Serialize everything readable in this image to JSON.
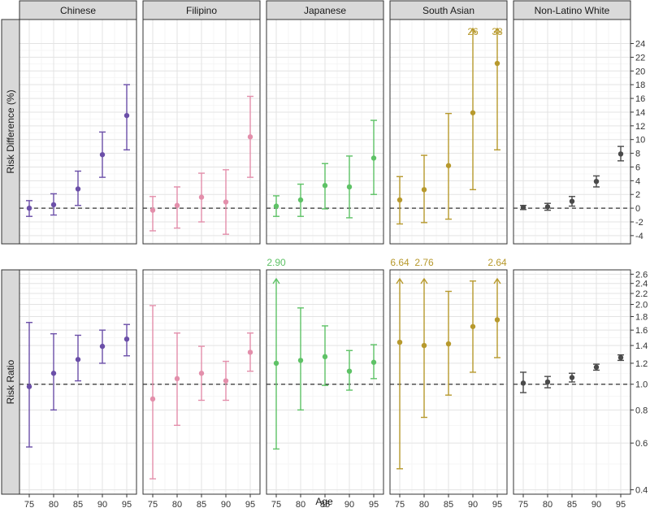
{
  "chart_data": {
    "type": "scatter",
    "xlabel": "Age",
    "x": [
      75,
      80,
      85,
      90,
      95
    ],
    "groups": [
      {
        "name": "Chinese",
        "color": "#6b4fa8"
      },
      {
        "name": "Filipino",
        "color": "#e38fab"
      },
      {
        "name": "Japanese",
        "color": "#5ec266"
      },
      {
        "name": "South Asian",
        "color": "#b7992d"
      },
      {
        "name": "Non-Latino White",
        "color": "#4a4a4a"
      }
    ],
    "rows": [
      {
        "strip_label": "Risk Difference (%)",
        "scale": "linear",
        "ylim": [
          -5.2,
          27.5
        ],
        "ticks": [
          -4,
          -2,
          0,
          2,
          4,
          6,
          8,
          10,
          12,
          14,
          16,
          18,
          20,
          22,
          24
        ],
        "tick_labels": [
          "-4",
          "-2",
          "0",
          "2",
          "4",
          "6",
          "8",
          "10",
          "12",
          "14",
          "16",
          "18",
          "20",
          "22",
          "24"
        ],
        "minor_ticks": [
          -5,
          -3,
          -1,
          1,
          3,
          5,
          7,
          9,
          11,
          13,
          15,
          17,
          19,
          21,
          23
        ],
        "reference_line": 0,
        "points": [
          {
            "group": "Chinese",
            "x": 75,
            "y": 0.0,
            "lo": -1.2,
            "hi": 1.1
          },
          {
            "group": "Chinese",
            "x": 80,
            "y": 0.5,
            "lo": -1.0,
            "hi": 2.1
          },
          {
            "group": "Chinese",
            "x": 85,
            "y": 2.8,
            "lo": 0.4,
            "hi": 5.4
          },
          {
            "group": "Chinese",
            "x": 90,
            "y": 7.8,
            "lo": 4.5,
            "hi": 11.1
          },
          {
            "group": "Chinese",
            "x": 95,
            "y": 13.5,
            "lo": 8.5,
            "hi": 18.0
          },
          {
            "group": "Filipino",
            "x": 75,
            "y": -0.3,
            "lo": -3.3,
            "hi": 1.7
          },
          {
            "group": "Filipino",
            "x": 80,
            "y": 0.4,
            "lo": -2.9,
            "hi": 3.1
          },
          {
            "group": "Filipino",
            "x": 85,
            "y": 1.6,
            "lo": -2.0,
            "hi": 5.1
          },
          {
            "group": "Filipino",
            "x": 90,
            "y": 0.9,
            "lo": -3.8,
            "hi": 5.6
          },
          {
            "group": "Filipino",
            "x": 95,
            "y": 10.4,
            "lo": 4.5,
            "hi": 16.3
          },
          {
            "group": "Japanese",
            "x": 75,
            "y": 0.3,
            "lo": -1.2,
            "hi": 1.8
          },
          {
            "group": "Japanese",
            "x": 80,
            "y": 1.2,
            "lo": -1.2,
            "hi": 3.5
          },
          {
            "group": "Japanese",
            "x": 85,
            "y": 3.3,
            "lo": -0.1,
            "hi": 6.5
          },
          {
            "group": "Japanese",
            "x": 90,
            "y": 3.1,
            "lo": -1.4,
            "hi": 7.6
          },
          {
            "group": "Japanese",
            "x": 95,
            "y": 7.3,
            "lo": 2.0,
            "hi": 12.8
          },
          {
            "group": "South Asian",
            "x": 75,
            "y": 1.2,
            "lo": -2.3,
            "hi": 4.6
          },
          {
            "group": "South Asian",
            "x": 80,
            "y": 2.7,
            "lo": -2.1,
            "hi": 7.7
          },
          {
            "group": "South Asian",
            "x": 85,
            "y": 6.2,
            "lo": -1.6,
            "hi": 13.8
          },
          {
            "group": "South Asian",
            "x": 90,
            "y": 13.9,
            "lo": 2.7,
            "hi": 26,
            "clipped": true,
            "clip_label": "26"
          },
          {
            "group": "South Asian",
            "x": 95,
            "y": 21.1,
            "lo": 8.5,
            "hi": 38,
            "clipped": true,
            "clip_label": "38"
          },
          {
            "group": "Non-Latino White",
            "x": 75,
            "y": 0.1,
            "lo": -0.2,
            "hi": 0.4
          },
          {
            "group": "Non-Latino White",
            "x": 80,
            "y": 0.2,
            "lo": -0.3,
            "hi": 0.7
          },
          {
            "group": "Non-Latino White",
            "x": 85,
            "y": 1.0,
            "lo": 0.3,
            "hi": 1.7
          },
          {
            "group": "Non-Latino White",
            "x": 90,
            "y": 3.9,
            "lo": 3.1,
            "hi": 4.7
          },
          {
            "group": "Non-Latino White",
            "x": 95,
            "y": 7.9,
            "lo": 6.9,
            "hi": 9.0
          }
        ]
      },
      {
        "strip_label": "Risk Ratio",
        "scale": "log",
        "ylim": [
          0.385,
          2.7
        ],
        "ticks": [
          0.4,
          0.6,
          0.8,
          1.0,
          1.2,
          1.4,
          1.6,
          1.8,
          2.0,
          2.2,
          2.4,
          2.6
        ],
        "tick_labels": [
          "0.4",
          "0.6",
          "0.8",
          "1.0",
          "1.2",
          "1.4",
          "1.6",
          "1.8",
          "2.0",
          "2.2",
          "2.4",
          "2.6"
        ],
        "minor_ticks": [
          0.5,
          0.7,
          0.9,
          1.1,
          1.3,
          1.5,
          1.7,
          1.9,
          2.1,
          2.3,
          2.5
        ],
        "reference_line": 1.0,
        "points": [
          {
            "group": "Chinese",
            "x": 75,
            "y": 0.98,
            "lo": 0.58,
            "hi": 1.71
          },
          {
            "group": "Chinese",
            "x": 80,
            "y": 1.1,
            "lo": 0.8,
            "hi": 1.55
          },
          {
            "group": "Chinese",
            "x": 85,
            "y": 1.24,
            "lo": 1.03,
            "hi": 1.53
          },
          {
            "group": "Chinese",
            "x": 90,
            "y": 1.39,
            "lo": 1.2,
            "hi": 1.6
          },
          {
            "group": "Chinese",
            "x": 95,
            "y": 1.48,
            "lo": 1.28,
            "hi": 1.68
          },
          {
            "group": "Filipino",
            "x": 75,
            "y": 0.88,
            "lo": 0.44,
            "hi": 1.98
          },
          {
            "group": "Filipino",
            "x": 80,
            "y": 1.05,
            "lo": 0.7,
            "hi": 1.56
          },
          {
            "group": "Filipino",
            "x": 85,
            "y": 1.1,
            "lo": 0.87,
            "hi": 1.39
          },
          {
            "group": "Filipino",
            "x": 90,
            "y": 1.03,
            "lo": 0.87,
            "hi": 1.22
          },
          {
            "group": "Filipino",
            "x": 95,
            "y": 1.32,
            "lo": 1.12,
            "hi": 1.56
          },
          {
            "group": "Japanese",
            "x": 75,
            "y": 1.2,
            "lo": 0.57,
            "hi": 2.9,
            "clipped": true,
            "clip_label": "2.90"
          },
          {
            "group": "Japanese",
            "x": 80,
            "y": 1.23,
            "lo": 0.8,
            "hi": 1.94
          },
          {
            "group": "Japanese",
            "x": 85,
            "y": 1.27,
            "lo": 0.99,
            "hi": 1.66
          },
          {
            "group": "Japanese",
            "x": 90,
            "y": 1.12,
            "lo": 0.95,
            "hi": 1.34
          },
          {
            "group": "Japanese",
            "x": 95,
            "y": 1.21,
            "lo": 1.05,
            "hi": 1.41
          },
          {
            "group": "South Asian",
            "x": 75,
            "y": 1.44,
            "lo": 0.48,
            "hi": 6.64,
            "clipped": true,
            "clip_label": "6.64"
          },
          {
            "group": "South Asian",
            "x": 80,
            "y": 1.4,
            "lo": 0.75,
            "hi": 2.76,
            "clipped": true,
            "clip_label": "2.76"
          },
          {
            "group": "South Asian",
            "x": 85,
            "y": 1.42,
            "lo": 0.91,
            "hi": 2.24
          },
          {
            "group": "South Asian",
            "x": 90,
            "y": 1.65,
            "lo": 1.11,
            "hi": 2.45
          },
          {
            "group": "South Asian",
            "x": 95,
            "y": 1.75,
            "lo": 1.26,
            "hi": 2.64,
            "clipped": true,
            "clip_label": "2.64"
          },
          {
            "group": "Non-Latino White",
            "x": 75,
            "y": 1.01,
            "lo": 0.93,
            "hi": 1.11
          },
          {
            "group": "Non-Latino White",
            "x": 80,
            "y": 1.02,
            "lo": 0.97,
            "hi": 1.07
          },
          {
            "group": "Non-Latino White",
            "x": 85,
            "y": 1.06,
            "lo": 1.02,
            "hi": 1.1
          },
          {
            "group": "Non-Latino White",
            "x": 90,
            "y": 1.16,
            "lo": 1.13,
            "hi": 1.19
          },
          {
            "group": "Non-Latino White",
            "x": 95,
            "y": 1.26,
            "lo": 1.23,
            "hi": 1.29
          }
        ]
      }
    ]
  }
}
